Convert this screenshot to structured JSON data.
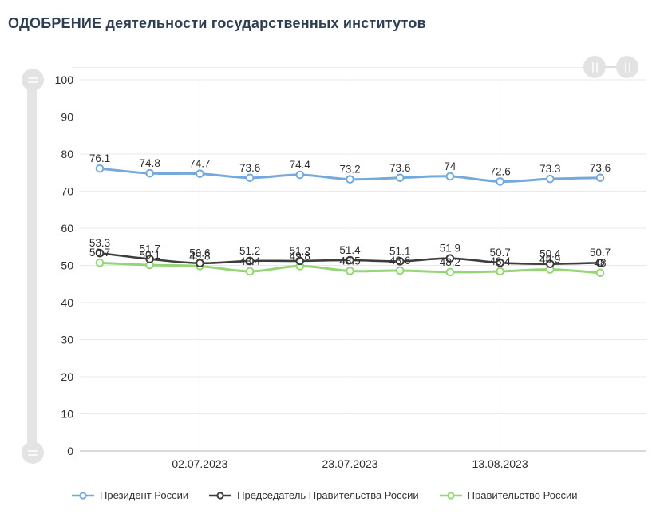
{
  "title": "ОДОБРЕНИЕ деятельности государственных институтов",
  "chart_data": {
    "type": "line",
    "title": "ОДОБРЕНИЕ деятельности государственных институтов",
    "n_points": 11,
    "x_tick_labels": [
      {
        "index": 2,
        "label": "02.07.2023"
      },
      {
        "index": 5,
        "label": "23.07.2023"
      },
      {
        "index": 8,
        "label": "13.08.2023"
      }
    ],
    "ylim": [
      0,
      100
    ],
    "y_ticks": [
      0,
      10,
      20,
      30,
      40,
      50,
      60,
      70,
      80,
      90,
      100
    ],
    "grid": true,
    "legend_position": "bottom",
    "marker_style": "open-circle",
    "series": [
      {
        "name": "Президент России",
        "color": "#74a9dd",
        "values": [
          76.1,
          74.8,
          74.7,
          73.6,
          74.4,
          73.2,
          73.6,
          74,
          72.6,
          73.3,
          73.6
        ]
      },
      {
        "name": "Председатель Правительства России",
        "color": "#3d3d3d",
        "values": [
          53.3,
          51.7,
          50.6,
          51.2,
          51.2,
          51.4,
          51.1,
          51.9,
          50.7,
          50.4,
          50.7
        ]
      },
      {
        "name": "Правительство России",
        "color": "#94d575",
        "values": [
          50.7,
          50.1,
          49.8,
          48.4,
          49.8,
          48.5,
          48.6,
          48.2,
          48.4,
          48.9,
          48
        ]
      }
    ]
  },
  "icons": {
    "vertical_scrollbar_grip": "grip-lines-horizontal-icon",
    "horizontal_scrollbar_grip": "grip-lines-vertical-icon"
  },
  "colors": {
    "title": "#2e3e52",
    "grid": "#e9e9e9",
    "axis_line": "#b5b5b5",
    "label_text": "#2e2e2e",
    "scrollbar": "#e3e3e3"
  }
}
